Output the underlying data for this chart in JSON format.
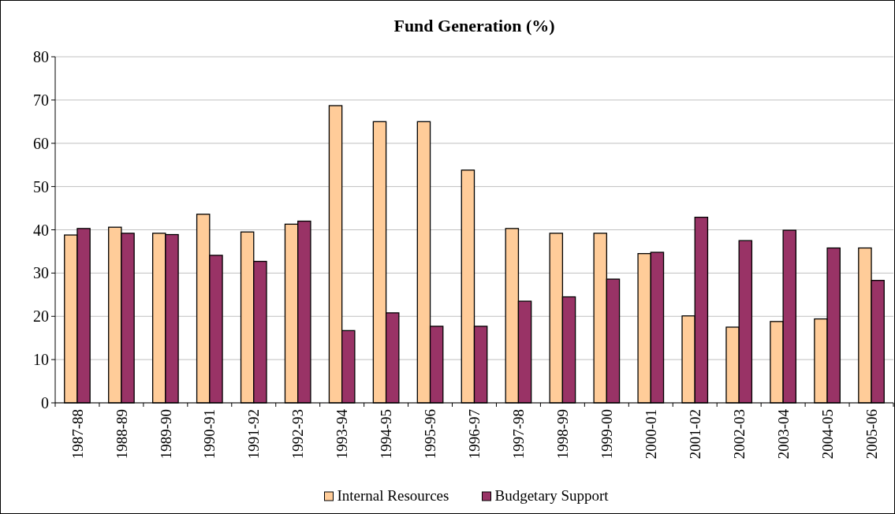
{
  "chart_data": {
    "type": "bar",
    "title": "Fund Generation (%)",
    "categories": [
      "1987-88",
      "1988-89",
      "1989-90",
      "1990-91",
      "1991-92",
      "1992-93",
      "1993-94",
      "1994-95",
      "1995-96",
      "1996-97",
      "1997-98",
      "1998-99",
      "1999-00",
      "2000-01",
      "2001-02",
      "2002-03",
      "2003-04",
      "2004-05",
      "2005-06"
    ],
    "series": [
      {
        "name": "Internal Resources",
        "color": "#ffcc99",
        "values": [
          38.8,
          40.6,
          39.2,
          43.6,
          39.5,
          41.3,
          68.7,
          65,
          65,
          53.8,
          40.3,
          39.2,
          39.2,
          34.5,
          20.1,
          17.5,
          18.8,
          19.4,
          35.8
        ]
      },
      {
        "name": "Budgetary Support",
        "color": "#993366",
        "values": [
          40.3,
          39.2,
          38.9,
          34.1,
          32.7,
          42,
          16.7,
          20.8,
          17.7,
          17.7,
          23.5,
          24.5,
          28.6,
          34.8,
          42.9,
          37.5,
          39.9,
          35.8,
          28.3
        ]
      }
    ],
    "ylim": [
      0,
      80
    ],
    "yticks": [
      0,
      10,
      20,
      30,
      40,
      50,
      60,
      70,
      80
    ],
    "grid": "y",
    "legend": "bottom"
  }
}
